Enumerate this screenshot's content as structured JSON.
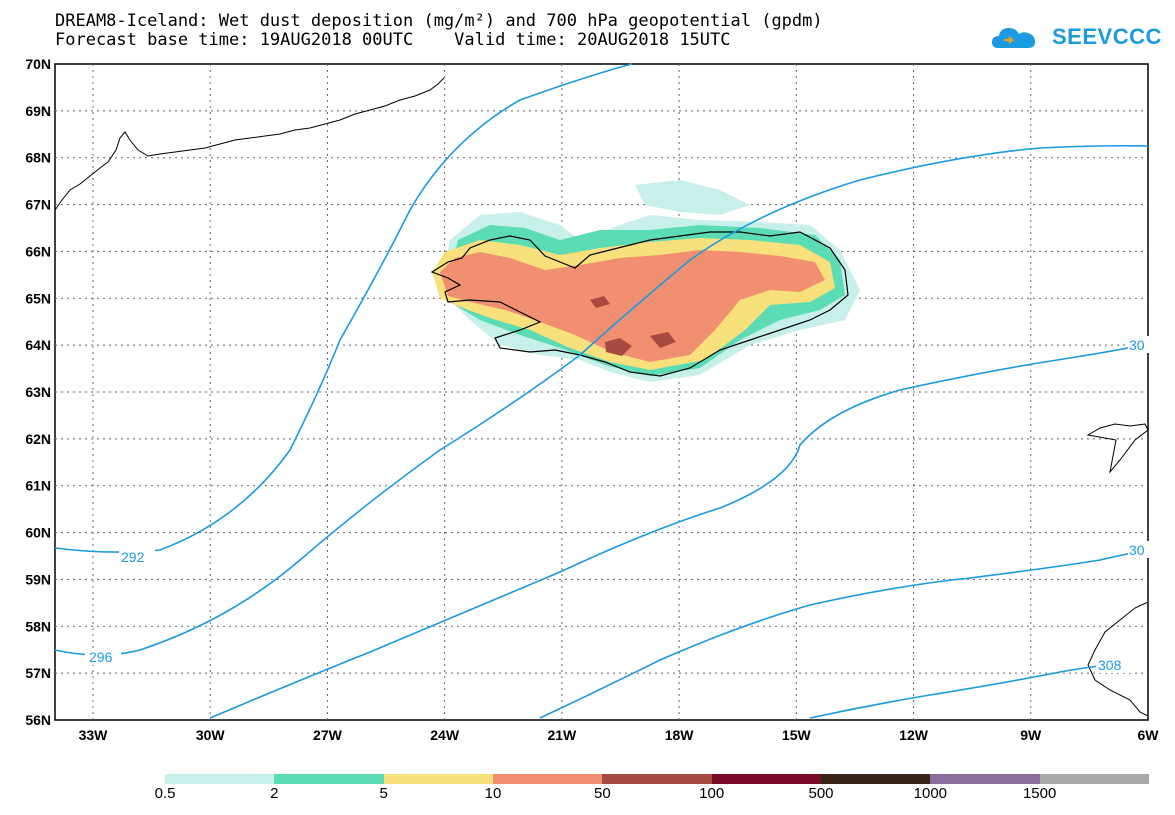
{
  "header": {
    "title_line1": "DREAM8-Iceland: Wet dust deposition (mg/m²) and 700 hPa geopotential (gpdm)",
    "title_line2": "Forecast base time: 19AUG2018 00UTC    Valid time: 20AUG2018 15UTC"
  },
  "logo": {
    "text": "SEEVCCC",
    "icon": "cloud-icon",
    "color": "#1a9be0"
  },
  "map": {
    "lat_labels": [
      "70N",
      "69N",
      "68N",
      "67N",
      "66N",
      "65N",
      "64N",
      "63N",
      "62N",
      "61N",
      "60N",
      "59N",
      "58N",
      "57N",
      "56N"
    ],
    "lon_labels": [
      "33W",
      "30W",
      "27W",
      "24W",
      "21W",
      "18W",
      "15W",
      "12W",
      "9W",
      "6W"
    ],
    "contour_color": "#1a9be0",
    "contour_labels": [
      "292",
      "296",
      "30",
      "30",
      "308"
    ]
  },
  "legend": {
    "colors": [
      "#c8f0ea",
      "#5cdcb4",
      "#f8e07c",
      "#f09070",
      "#a84a42",
      "#7a0c28",
      "#3a2418",
      "#8c6c9c",
      "#a8a8a8"
    ],
    "ticks": [
      "0.5",
      "2",
      "5",
      "10",
      "50",
      "100",
      "500",
      "1000",
      "1500"
    ]
  }
}
